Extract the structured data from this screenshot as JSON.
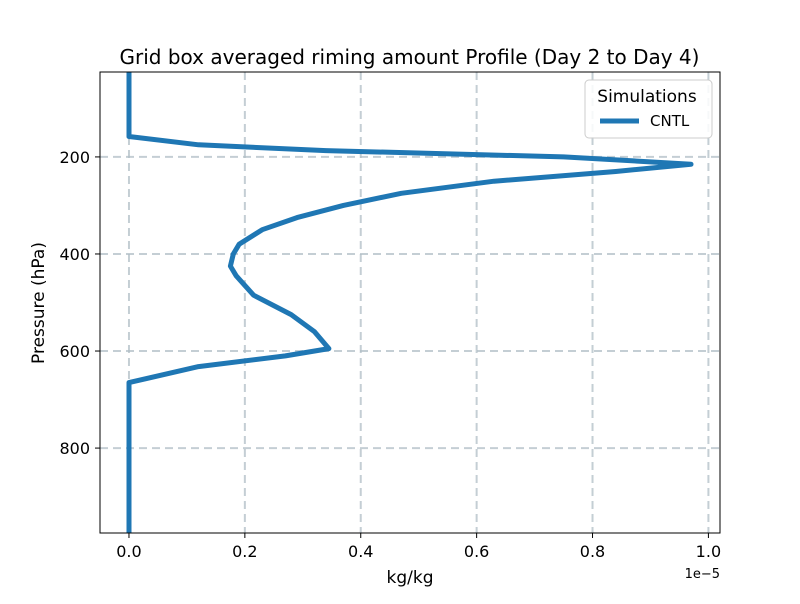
{
  "chart_data": {
    "type": "line",
    "title": "Grid box averaged riming amount Profile (Day 2 to Day 4)",
    "xlabel": "kg/kg",
    "ylabel": "Pressure (hPa)",
    "x_offset_label": "1e−5",
    "x_scale": 1e-05,
    "xlim": [
      -0.05,
      1.02
    ],
    "ylim": [
      975,
      25
    ],
    "y_inverted": true,
    "xticks": [
      0.0,
      0.2,
      0.4,
      0.6,
      0.8,
      1.0
    ],
    "xtick_labels": [
      "0.0",
      "0.2",
      "0.4",
      "0.6",
      "0.8",
      "1.0"
    ],
    "yticks": [
      200,
      400,
      600,
      800
    ],
    "ytick_labels": [
      "200",
      "400",
      "600",
      "800"
    ],
    "grid": true,
    "legend": {
      "title": "Simulations",
      "position": "top-right"
    },
    "series": [
      {
        "name": "CNTL",
        "color": "#1f77b4",
        "points": [
          {
            "p": 25,
            "v": 0.0
          },
          {
            "p": 100,
            "v": 0.0
          },
          {
            "p": 150,
            "v": 0.0
          },
          {
            "p": 158,
            "v": 0.0
          },
          {
            "p": 175,
            "v": 0.12
          },
          {
            "p": 187,
            "v": 0.34
          },
          {
            "p": 200,
            "v": 0.75
          },
          {
            "p": 215,
            "v": 0.97
          },
          {
            "p": 230,
            "v": 0.84
          },
          {
            "p": 250,
            "v": 0.63
          },
          {
            "p": 275,
            "v": 0.47
          },
          {
            "p": 300,
            "v": 0.37
          },
          {
            "p": 325,
            "v": 0.29
          },
          {
            "p": 350,
            "v": 0.23
          },
          {
            "p": 380,
            "v": 0.19
          },
          {
            "p": 400,
            "v": 0.18
          },
          {
            "p": 425,
            "v": 0.175
          },
          {
            "p": 445,
            "v": 0.185
          },
          {
            "p": 485,
            "v": 0.215
          },
          {
            "p": 525,
            "v": 0.28
          },
          {
            "p": 560,
            "v": 0.32
          },
          {
            "p": 595,
            "v": 0.345
          },
          {
            "p": 610,
            "v": 0.27
          },
          {
            "p": 632,
            "v": 0.12
          },
          {
            "p": 665,
            "v": 0.0
          },
          {
            "p": 700,
            "v": 0.0
          },
          {
            "p": 800,
            "v": 0.0
          },
          {
            "p": 900,
            "v": 0.0
          },
          {
            "p": 975,
            "v": 0.0
          }
        ]
      }
    ]
  }
}
